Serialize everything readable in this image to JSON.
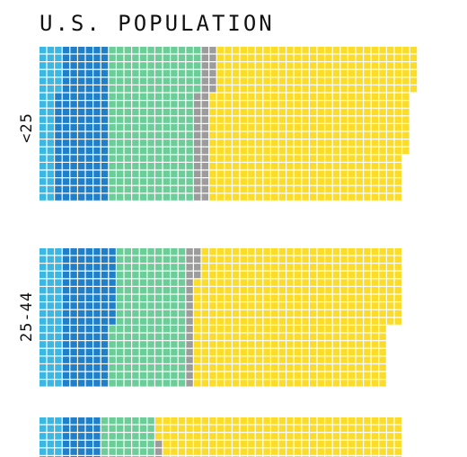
{
  "chart_data": {
    "type": "waffle",
    "title": "U.S. POPULATION",
    "cell_unit": "1 square = fixed population count",
    "colors": {
      "light-blue": "#3ab7e3",
      "blue": "#1f7fc9",
      "green": "#6ccd98",
      "gray": "#9c9c9c",
      "yellow": "#fbdc2a",
      "background": "#ffffff"
    },
    "panels": [
      {
        "name": "<25",
        "rows": 20,
        "col_counts": [
          3,
          7,
          12,
          2,
          25,
          1
        ],
        "col_colors": [
          "light-blue",
          "blue",
          "green",
          "gray",
          "yellow",
          "yellow"
        ],
        "bands": [
          {
            "rows": 6,
            "counts": [
              3,
              6,
              12,
              2,
              26
            ]
          },
          {
            "rows": 8,
            "counts": [
              2,
              7,
              11,
              2,
              26
            ]
          },
          {
            "rows": 6,
            "counts": [
              2,
              7,
              11,
              2,
              25
            ]
          }
        ]
      },
      {
        "name": "25-44",
        "rows": 18,
        "bands": [
          {
            "rows": 4,
            "counts": [
              3,
              7,
              9,
              2,
              26
            ]
          },
          {
            "rows": 6,
            "counts": [
              3,
              7,
              9,
              1,
              27
            ]
          },
          {
            "rows": 8,
            "counts": [
              3,
              6,
              10,
              1,
              25
            ]
          }
        ]
      },
      {
        "name": "",
        "rows": 6,
        "bands": [
          {
            "rows": 3,
            "counts": [
              3,
              5,
              7,
              0,
              32
            ]
          },
          {
            "rows": 3,
            "counts": [
              3,
              5,
              7,
              1,
              31
            ]
          }
        ]
      }
    ]
  }
}
